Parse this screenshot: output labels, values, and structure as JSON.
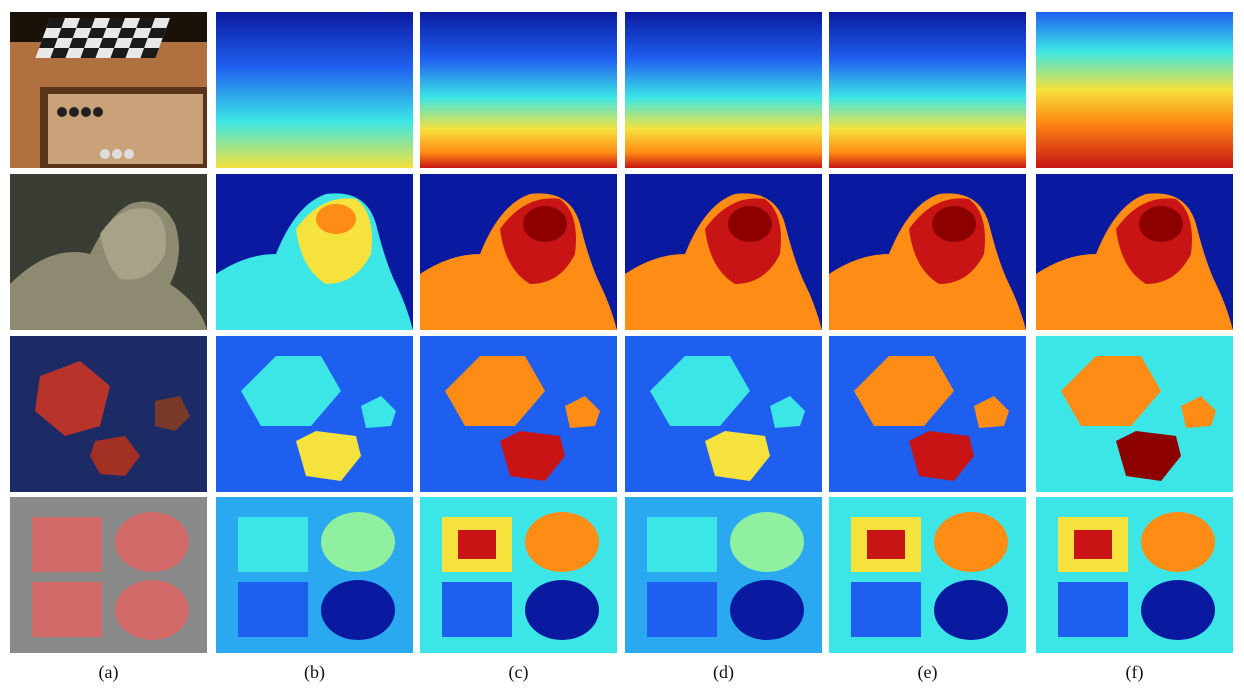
{
  "figure": {
    "column_labels": [
      "(a)",
      "(b)",
      "(c)",
      "(d)",
      "(e)",
      "(f)"
    ],
    "rows": [
      {
        "scene": "chessboard-and-backgammon",
        "maps": [
          "photo",
          "depth-low",
          "depth-mid",
          "depth-mid",
          "depth-mid",
          "depth-high"
        ]
      },
      {
        "scene": "sculpture-head",
        "maps": [
          "photo",
          "depth-low",
          "depth-mid",
          "depth-mid",
          "depth-mid",
          "depth-high"
        ]
      },
      {
        "scene": "polyhedra",
        "maps": [
          "photo",
          "depth-low",
          "depth-mid",
          "depth-low",
          "depth-mid",
          "depth-high"
        ]
      },
      {
        "scene": "squares-and-circles",
        "maps": [
          "photo",
          "depth-low",
          "depth-mid",
          "depth-low",
          "depth-mid",
          "depth-high"
        ]
      }
    ],
    "colors": {
      "deep_blue": "#0a1aa0",
      "blue": "#1e5ff0",
      "cyan": "#3ce6e6",
      "yellow": "#f5e23c",
      "orange": "#ff8c14",
      "red": "#c81414",
      "dark_red": "#8c0000"
    }
  }
}
